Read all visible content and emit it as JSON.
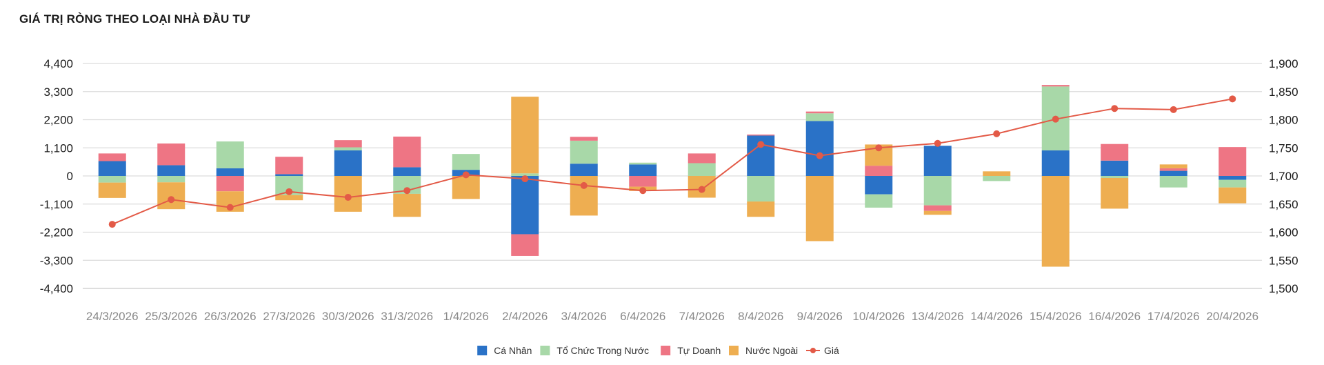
{
  "chart_data": {
    "type": "bar",
    "title": "GIÁ TRỊ RÒNG THEO LOẠI NHÀ ĐẦU TƯ",
    "stacked": true,
    "categories": [
      "24/3/2026",
      "25/3/2026",
      "26/3/2026",
      "27/3/2026",
      "30/3/2026",
      "31/3/2026",
      "1/4/2026",
      "2/4/2026",
      "3/4/2026",
      "6/4/2026",
      "7/4/2026",
      "8/4/2026",
      "9/4/2026",
      "10/4/2026",
      "13/4/2026",
      "14/4/2026",
      "15/4/2026",
      "16/4/2026",
      "17/4/2026",
      "20/4/2026"
    ],
    "y_left": {
      "ylim": [
        -4400,
        4400
      ],
      "ticks": [
        4400,
        3300,
        2200,
        1100,
        0,
        -1100,
        -2200,
        -3300,
        -4400
      ],
      "tick_labels": [
        "4,400",
        "3,300",
        "2,200",
        "1,100",
        "0",
        "-1,100",
        "-2,200",
        "-3,300",
        "-4,400"
      ]
    },
    "y_right": {
      "ylim": [
        1500,
        1900
      ],
      "ticks": [
        1900,
        1850,
        1800,
        1750,
        1700,
        1650,
        1600,
        1550,
        1500
      ],
      "tick_labels": [
        "1,900",
        "1,850",
        "1,800",
        "1,750",
        "1,700",
        "1,650",
        "1,600",
        "1,550",
        "1,500"
      ]
    },
    "grid": true,
    "legend_position": "bottom-center",
    "series": [
      {
        "name": "Cá Nhân",
        "color": "#2a72c7",
        "axis": "left",
        "values": [
          580,
          420,
          300,
          70,
          1000,
          340,
          240,
          -2280,
          480,
          450,
          0,
          1580,
          2150,
          -720,
          1180,
          0,
          1000,
          600,
          200,
          -150
        ]
      },
      {
        "name": "Tổ Chức Trong Nước",
        "color": "#a8d8a8",
        "axis": "left",
        "values": [
          -260,
          -250,
          1050,
          -750,
          120,
          -700,
          620,
          100,
          900,
          70,
          500,
          -1000,
          300,
          -520,
          -1150,
          -200,
          2500,
          -80,
          -450,
          -300
        ]
      },
      {
        "name": "Tự Doanh",
        "color": "#ee7584",
        "axis": "left",
        "values": [
          300,
          850,
          -600,
          680,
          280,
          1200,
          0,
          -850,
          150,
          -420,
          380,
          40,
          70,
          400,
          -220,
          0,
          60,
          650,
          100,
          1130
        ]
      },
      {
        "name": "Nước Ngoài",
        "color": "#eeae51",
        "axis": "left",
        "values": [
          -600,
          -1050,
          -800,
          -200,
          -1400,
          -900,
          -900,
          3000,
          -1550,
          -170,
          -850,
          -600,
          -2550,
          830,
          -150,
          180,
          -3550,
          -1200,
          150,
          -620
        ]
      },
      {
        "name": "Giá",
        "color": "#e35a47",
        "axis": "right",
        "type": "line",
        "values": [
          1614,
          1658,
          1644,
          1672,
          1662,
          1674,
          1702,
          1695,
          1683,
          1674,
          1676,
          1756,
          1736,
          1750,
          1758,
          1775,
          1801,
          1820,
          1818,
          1837
        ]
      }
    ]
  }
}
